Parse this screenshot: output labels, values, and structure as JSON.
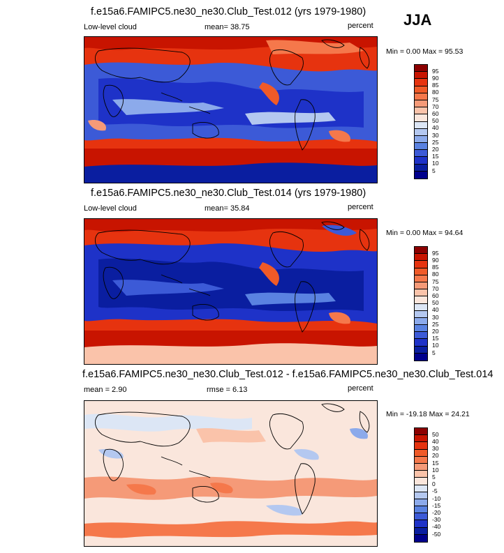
{
  "season": "JJA",
  "panels": [
    {
      "title": "f.e15a6.FAMIPC5.ne30_ne30.Club_Test.012 (yrs 1979-1980)",
      "left_label": "Low-level cloud",
      "center_label": "mean=  38.75",
      "units": "percent",
      "minmax": "Min =   0.00 Max =  95.53",
      "levels": [
        "95",
        "90",
        "85",
        "80",
        "75",
        "70",
        "60",
        "50",
        "40",
        "30",
        "25",
        "20",
        "15",
        "10",
        "5"
      ],
      "colors": [
        "#8c0000",
        "#c81400",
        "#e6330f",
        "#f05a28",
        "#f5784b",
        "#f59a78",
        "#fac3aa",
        "#fae6dc",
        "#dce6f5",
        "#b4c8f0",
        "#8caaeb",
        "#5a82e1",
        "#3c5ad7",
        "#1e32c8",
        "#0a1ea0",
        "#00008c"
      ]
    },
    {
      "title": "f.e15a6.FAMIPC5.ne30_ne30.Club_Test.014 (yrs 1979-1980)",
      "left_label": "Low-level cloud",
      "center_label": "mean=  35.84",
      "units": "percent",
      "minmax": "Min =   0.00 Max =  94.64",
      "levels": [
        "95",
        "90",
        "85",
        "80",
        "75",
        "70",
        "60",
        "50",
        "40",
        "30",
        "25",
        "20",
        "15",
        "10",
        "5"
      ],
      "colors": [
        "#8c0000",
        "#c81400",
        "#e6330f",
        "#f05a28",
        "#f5784b",
        "#f59a78",
        "#fac3aa",
        "#fae6dc",
        "#dce6f5",
        "#b4c8f0",
        "#8caaeb",
        "#5a82e1",
        "#3c5ad7",
        "#1e32c8",
        "#0a1ea0",
        "#00008c"
      ]
    },
    {
      "title": "f.e15a6.FAMIPC5.ne30_ne30.Club_Test.012 - f.e15a6.FAMIPC5.ne30_ne30.Club_Test.014",
      "left_label": "mean =   2.90",
      "center_label": "rmse =   6.13",
      "units": "percent",
      "minmax": "Min = -19.18 Max =  24.21",
      "levels": [
        "50",
        "40",
        "30",
        "20",
        "15",
        "10",
        "5",
        "0",
        "-5",
        "-10",
        "-15",
        "-20",
        "-30",
        "-40",
        "-50"
      ],
      "colors": [
        "#8c0000",
        "#c81400",
        "#e6330f",
        "#f05a28",
        "#f5784b",
        "#f59a78",
        "#fac3aa",
        "#fae6dc",
        "#dce6f5",
        "#b4c8f0",
        "#8caaeb",
        "#5a82e1",
        "#3c5ad7",
        "#1e32c8",
        "#0a1ea0",
        "#00008c"
      ]
    }
  ]
}
